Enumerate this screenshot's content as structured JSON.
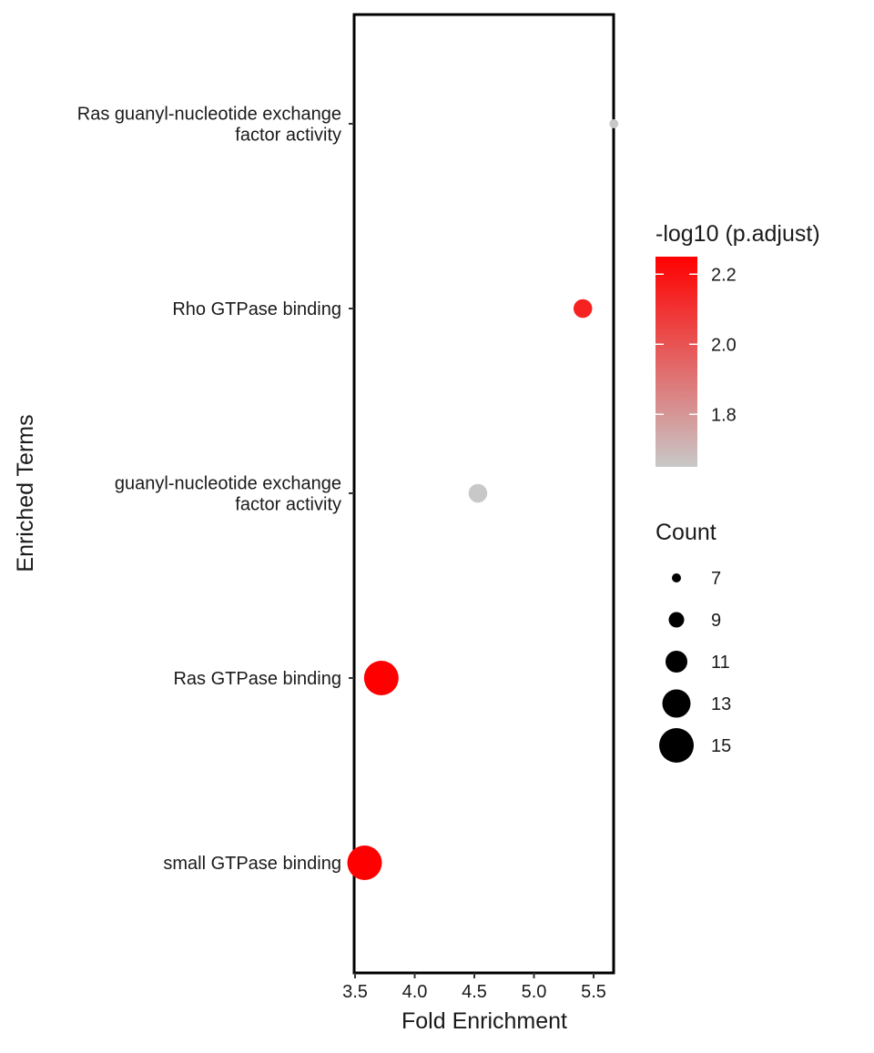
{
  "chart_data": {
    "type": "scatter",
    "subtype": "dotplot",
    "title": "",
    "xlabel": "Fold Enrichment",
    "ylabel": "Enriched Terms",
    "xlim": [
      3.5,
      5.75
    ],
    "xticks": [
      3.5,
      4.0,
      4.5,
      5.0,
      5.5
    ],
    "xtick_labels": [
      "3.5",
      "4.0",
      "4.5",
      "5.0",
      "5.5"
    ],
    "grid": false,
    "legend_position": "right",
    "terms": [
      {
        "label_lines": [
          "Ras guanyl-nucleotide exchange",
          "factor activity"
        ],
        "fold_enrichment": 5.67,
        "count": 7,
        "neg_log10_padj": 1.65
      },
      {
        "label_lines": [
          "Rho GTPase binding"
        ],
        "fold_enrichment": 5.41,
        "count": 10,
        "neg_log10_padj": 2.15
      },
      {
        "label_lines": [
          "guanyl-nucleotide exchange",
          "factor activity"
        ],
        "fold_enrichment": 4.53,
        "count": 10,
        "neg_log10_padj": 1.65
      },
      {
        "label_lines": [
          "Ras GTPase binding"
        ],
        "fold_enrichment": 3.72,
        "count": 15,
        "neg_log10_padj": 2.25
      },
      {
        "label_lines": [
          "small GTPase binding"
        ],
        "fold_enrichment": 3.58,
        "count": 15,
        "neg_log10_padj": 2.25
      }
    ],
    "color_legend": {
      "title": "-log10 (p.adjust)",
      "range": [
        1.65,
        2.25
      ],
      "ticks": [
        1.8,
        2.0,
        2.2
      ],
      "tick_labels": [
        "1.8",
        "2.0",
        "2.2"
      ],
      "low_color": "#c8c8c8",
      "high_color": "#ff0000"
    },
    "size_legend": {
      "title": "Count",
      "values": [
        7,
        9,
        11,
        13,
        15
      ],
      "labels": [
        "7",
        "9",
        "11",
        "13",
        "15"
      ],
      "color": "#000000"
    }
  }
}
